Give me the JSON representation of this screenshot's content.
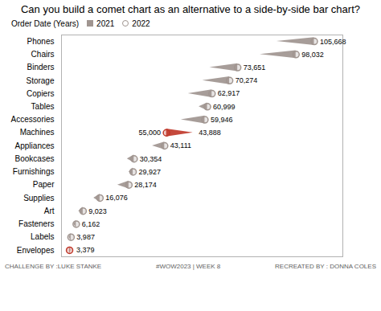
{
  "chart_data": {
    "type": "comet",
    "title": "Can you build a comet chart as an alternative to a side-by-side bar chart?",
    "legend_title": "Order Date (Years)",
    "legend": "top-left",
    "orientation": "horizontal",
    "data_labels": true,
    "tick_labels": "y",
    "categories": [
      "Phones",
      "Chairs",
      "Binders",
      "Storage",
      "Copiers",
      "Tables",
      "Accessories",
      "Machines",
      "Appliances",
      "Bookcases",
      "Furnishings",
      "Paper",
      "Supplies",
      "Art",
      "Fasteners",
      "Labels",
      "Envelopes"
    ],
    "series": [
      {
        "name": "2021",
        "marker": "square",
        "color": "#a09590",
        "colors": [
          "#a09590",
          "#a09590",
          "#a09590",
          "#a09590",
          "#a09590",
          "#a09590",
          "#a09590",
          "#c0392b",
          "#a09590",
          "#a09590",
          "#a09590",
          "#a09590",
          "#a09590",
          "#a09590",
          "#a09590",
          "#a09590",
          "#a09590"
        ],
        "values": [
          90000,
          83000,
          62000,
          59000,
          53000,
          57500,
          50000,
          55000,
          38000,
          27500,
          28200,
          23500,
          13500,
          7200,
          5200,
          3200,
          3900
        ],
        "value_labels": [
          null,
          null,
          null,
          null,
          null,
          null,
          null,
          "55,000",
          null,
          null,
          null,
          null,
          null,
          null,
          null,
          null,
          null
        ]
      },
      {
        "name": "2022",
        "marker": "circle",
        "color": "#a09590",
        "colors": [
          "#a09590",
          "#a09590",
          "#a09590",
          "#a09590",
          "#a09590",
          "#a09590",
          "#a09590",
          "#c0392b",
          "#a09590",
          "#a09590",
          "#a09590",
          "#a09590",
          "#a09590",
          "#a09590",
          "#a09590",
          "#a09590",
          "#c0392b"
        ],
        "values": [
          105668,
          98032,
          73651,
          70274,
          62917,
          60999,
          59946,
          43888,
          43111,
          30354,
          29927,
          28174,
          16076,
          9023,
          6162,
          3987,
          3379
        ],
        "value_labels": [
          "105,668",
          "98,032",
          "73,651",
          "70,274",
          "62,917",
          "60,999",
          "59,946",
          "43,888",
          "43,111",
          "30,354",
          "29,927",
          "28,174",
          "16,076",
          "9,023",
          "6,162",
          "3,987",
          "3,379"
        ]
      }
    ],
    "xlim": [
      0,
      117600
    ],
    "annotations": [
      "CHALLENGE BY :LUKE STANKE",
      "#WOW2023 | WEEK 8",
      "RECREATED BY : DONNA COLES"
    ]
  }
}
